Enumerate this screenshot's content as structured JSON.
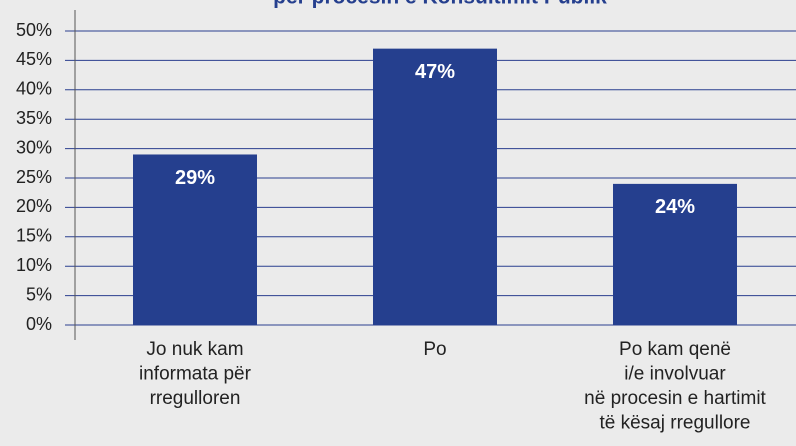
{
  "chart_data": {
    "type": "bar",
    "title": "për procesin e Konsultimit Publik",
    "categories": [
      [
        "Jo nuk kam",
        "informata për",
        "rregulloren"
      ],
      [
        "Po"
      ],
      [
        "Po kam qenë",
        "i/e involvuar",
        "në procesin e hartimit",
        "të kësaj rregullore"
      ]
    ],
    "values": [
      29,
      47,
      24
    ],
    "value_labels": [
      "29%",
      "47%",
      "24%"
    ],
    "color": "#253f8e",
    "ylim": [
      0,
      50
    ],
    "yticks": [
      {
        "value": 0,
        "label": "0%"
      },
      {
        "value": 5,
        "label": "5%"
      },
      {
        "value": 10,
        "label": "10%"
      },
      {
        "value": 15,
        "label": "15%"
      },
      {
        "value": 20,
        "label": "20%"
      },
      {
        "value": 25,
        "label": "25%"
      },
      {
        "value": 30,
        "label": "30%"
      },
      {
        "value": 35,
        "label": "35%"
      },
      {
        "value": 40,
        "label": "40%"
      },
      {
        "value": 45,
        "label": "45%"
      },
      {
        "value": 50,
        "label": "50%"
      }
    ],
    "grid": true
  }
}
